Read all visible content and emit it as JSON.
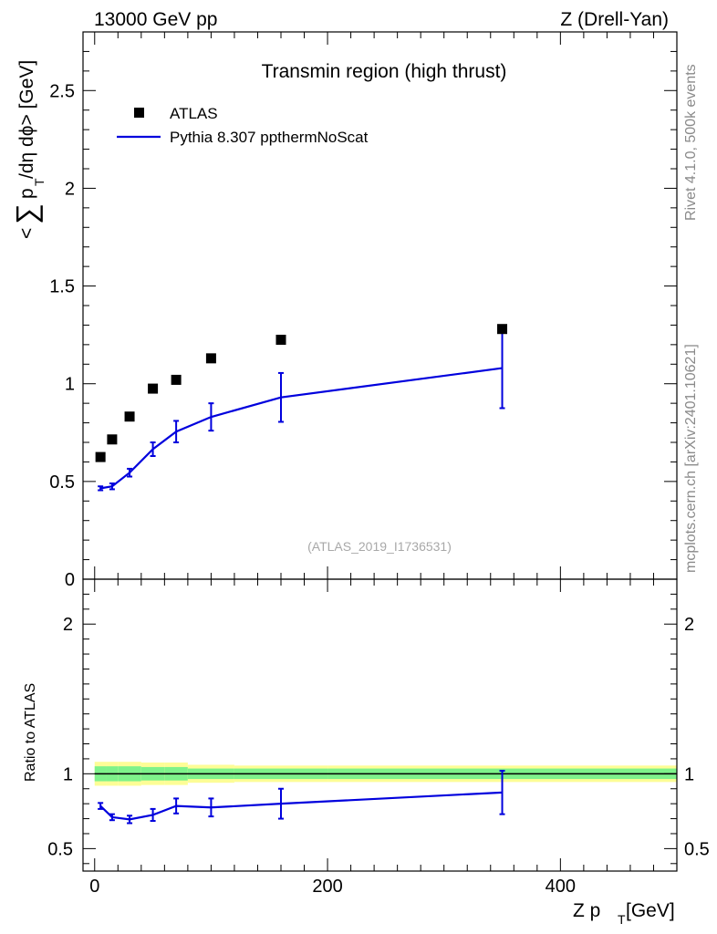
{
  "header": {
    "left": "13000 GeV pp",
    "right": "Z (Drell-Yan)"
  },
  "side_labels": {
    "rivet": "Rivet 4.1.0,  500k events",
    "mcplots": "mcplots.cern.ch [arXiv:2401.10621]"
  },
  "colors": {
    "mc_line": "#0000dd",
    "data_marker": "#000000",
    "band_inner": "#7ef28a",
    "band_outer": "#fdfd96"
  },
  "chart_data": [
    {
      "type": "scatter",
      "title": "Transmin region (high thrust)",
      "watermark": "(ATLAS_2019_I1736531)",
      "ylabel": "< ∑ p_T /dη dϕ> [GeV]",
      "ylabel_parts": {
        "open": "<",
        "sum": "∑",
        "p": "p",
        "sub": "T",
        "rest": " /dη dϕ> [GeV]"
      },
      "xlim": [
        -10,
        500
      ],
      "ylim": [
        0,
        2.8
      ],
      "yticks": [
        0,
        0.5,
        1,
        1.5,
        2,
        2.5
      ],
      "ytick_labels": [
        "0",
        "0.5",
        "1",
        "1.5",
        "2",
        "2.5"
      ],
      "legend": [
        {
          "label": "ATLAS",
          "kind": "marker"
        },
        {
          "label": "Pythia 8.307 ppthermNoScat",
          "kind": "line"
        }
      ],
      "series": [
        {
          "name": "ATLAS",
          "x": [
            5,
            15,
            30,
            50,
            70,
            100,
            160,
            350
          ],
          "y": [
            0.625,
            0.715,
            0.832,
            0.975,
            1.02,
            1.13,
            1.225,
            1.28
          ]
        },
        {
          "name": "Pythia 8.307 ppthermNoScat",
          "x": [
            5,
            15,
            30,
            50,
            70,
            100,
            160,
            350
          ],
          "y": [
            0.465,
            0.475,
            0.545,
            0.665,
            0.755,
            0.83,
            0.93,
            1.08
          ],
          "err": [
            0.01,
            0.015,
            0.02,
            0.035,
            0.055,
            0.07,
            0.125,
            0.205
          ]
        }
      ]
    },
    {
      "type": "line",
      "ylabel": "Ratio to ATLAS",
      "xlabel": "Z p_T [GeV]",
      "xlabel_parts": {
        "main": "Z p",
        "sub": "T",
        "unit": " [GeV]"
      },
      "xlim": [
        -10,
        500
      ],
      "ylim": [
        0.35,
        2.3
      ],
      "xticks": [
        0,
        200,
        400
      ],
      "xtick_labels": [
        "0",
        "200",
        "400"
      ],
      "yticks": [
        0.5,
        1,
        2
      ],
      "ytick_labels": [
        "0.5",
        "1",
        "2"
      ],
      "reference": 1,
      "bins": [
        [
          0,
          10
        ],
        [
          10,
          20
        ],
        [
          20,
          40
        ],
        [
          40,
          60
        ],
        [
          60,
          80
        ],
        [
          80,
          120
        ],
        [
          120,
          200
        ],
        [
          200,
          500
        ]
      ],
      "band_inner": [
        0.05,
        0.05,
        0.05,
        0.045,
        0.045,
        0.035,
        0.035,
        0.035
      ],
      "band_outer": [
        0.08,
        0.08,
        0.08,
        0.075,
        0.075,
        0.06,
        0.055,
        0.055
      ],
      "series": [
        {
          "name": "Pythia 8.307 ppthermNoScat",
          "x": [
            5,
            15,
            30,
            50,
            70,
            100,
            160,
            350
          ],
          "y": [
            0.785,
            0.71,
            0.695,
            0.725,
            0.785,
            0.775,
            0.8,
            0.875
          ],
          "err": [
            0.02,
            0.02,
            0.025,
            0.04,
            0.05,
            0.06,
            0.1,
            0.145
          ]
        }
      ]
    }
  ]
}
